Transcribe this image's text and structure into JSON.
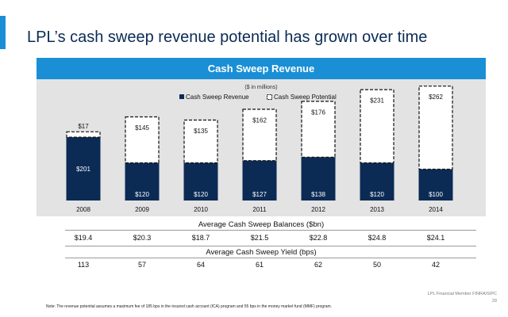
{
  "page": {
    "title": "LPL’s cash sweep revenue potential has grown over time",
    "panel_title": "Cash Sweep Revenue",
    "firm": "LPL Financial  Member FINRA/SIPC",
    "page_number": "29",
    "note": "Note: The revenue potential assumes a maximum fee of 185 bps in the insured cash account (ICA) program and 55 bps in the money market fund (MMF) program."
  },
  "colors": {
    "accent": "#1a8fd6",
    "title": "#0b2b55",
    "revenue": "#0b2b55",
    "panel_bg": "#e3e3e3"
  },
  "chart_data": {
    "type": "bar",
    "stacked": true,
    "subtitle": "($ in millions)",
    "categories": [
      "2008",
      "2009",
      "2010",
      "2011",
      "2012",
      "2013",
      "2014"
    ],
    "series": [
      {
        "name": "Cash Sweep Revenue",
        "values": [
          201,
          120,
          120,
          127,
          138,
          120,
          100
        ],
        "labels": [
          "$201",
          "$120",
          "$120",
          "$127",
          "$138",
          "$120",
          "$100"
        ],
        "color": "#0b2b55",
        "style": "solid"
      },
      {
        "name": "Cash Sweep Potential",
        "values": [
          17,
          145,
          135,
          162,
          176,
          231,
          262
        ],
        "labels": [
          "$17",
          "$145",
          "$135",
          "$162",
          "$176",
          "$231",
          "$262"
        ],
        "color": "#ffffff",
        "style": "dashed-outline"
      }
    ],
    "legend": "top-center",
    "grid": false
  },
  "balances": {
    "title": "Average Cash Sweep Balances ($bn)",
    "values": [
      "$19.4",
      "$20.3",
      "$18.7",
      "$21.5",
      "$22.8",
      "$24.8",
      "$24.1"
    ]
  },
  "yield": {
    "title": "Average Cash Sweep Yield (bps)",
    "values": [
      "113",
      "57",
      "64",
      "61",
      "62",
      "50",
      "42"
    ]
  }
}
